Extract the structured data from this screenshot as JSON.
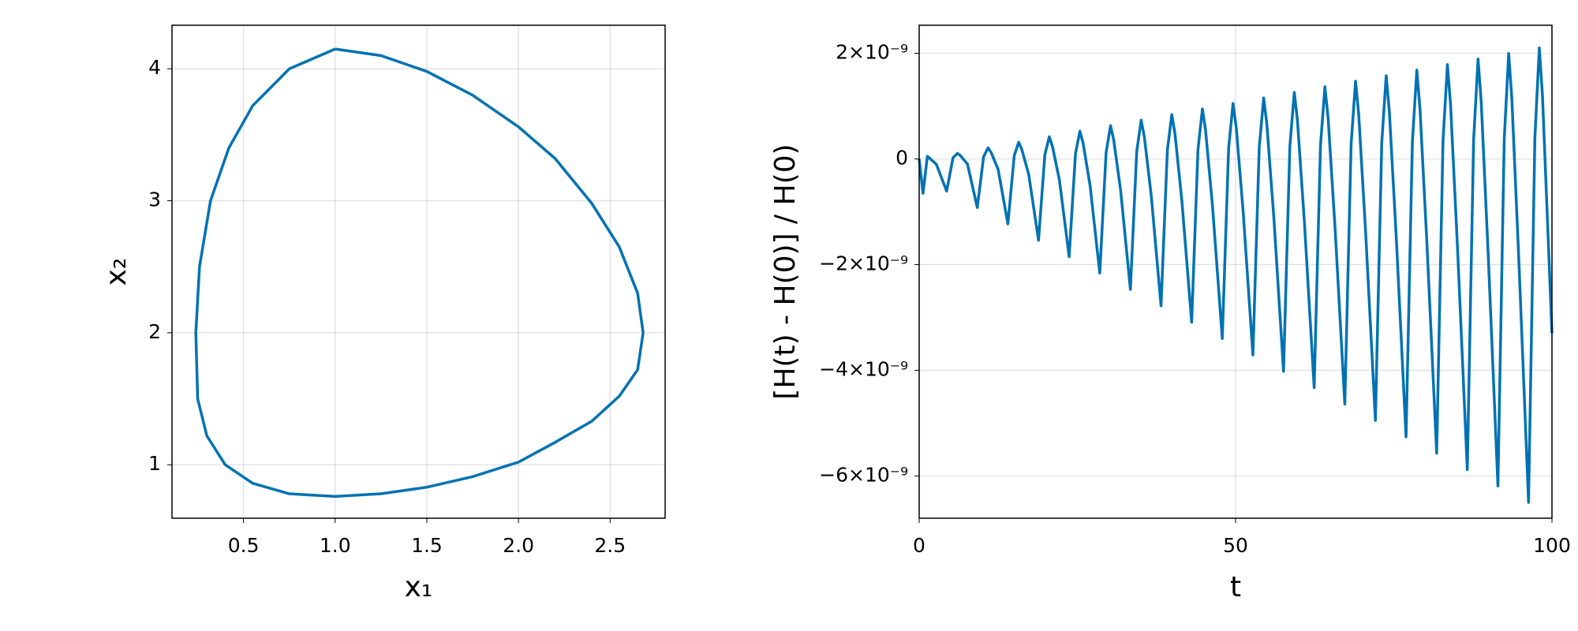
{
  "chart_data": [
    {
      "type": "line",
      "xlabel": "x₁",
      "ylabel": "x₂",
      "xlim": [
        0.11,
        2.8
      ],
      "ylim": [
        0.595,
        4.33
      ],
      "xticks": [
        0.5,
        {
          "value": 1,
          "label": "1.0"
        },
        1.5,
        {
          "value": 2,
          "label": "2.0"
        },
        2.5
      ],
      "yticks": [
        1,
        2,
        3,
        4
      ],
      "grid": true,
      "x": [
        1.0,
        1.25,
        1.5,
        1.75,
        2.0,
        2.2,
        2.4,
        2.55,
        2.65,
        2.68,
        2.65,
        2.55,
        2.4,
        2.2,
        2.0,
        1.75,
        1.5,
        1.25,
        1.0,
        0.75,
        0.55,
        0.4,
        0.3,
        0.25,
        0.24,
        0.26,
        0.32,
        0.42,
        0.55,
        0.75,
        1.0
      ],
      "series": [
        {
          "color": "#0072b2",
          "values": [
            4.15,
            4.1,
            3.98,
            3.8,
            3.56,
            3.32,
            2.98,
            2.65,
            2.3,
            2.0,
            1.72,
            1.52,
            1.33,
            1.17,
            1.02,
            0.91,
            0.83,
            0.78,
            0.76,
            0.78,
            0.86,
            1.0,
            1.22,
            1.5,
            2.0,
            2.5,
            3.0,
            3.4,
            3.72,
            4.0,
            4.15
          ]
        }
      ]
    },
    {
      "type": "line",
      "xlabel": "t",
      "ylabel": "[H(t) - H(0)] / H(0)",
      "xlim": [
        0,
        100
      ],
      "ylim": [
        -6.8e-09,
        2.53e-09
      ],
      "xticks": [
        0,
        50,
        100
      ],
      "yticks": [
        {
          "value": -6e-09,
          "label": "−6×10⁻⁹"
        },
        {
          "value": -4e-09,
          "label": "−4×10⁻⁹"
        },
        {
          "value": -2e-09,
          "label": "−2×10⁻⁹"
        },
        0,
        {
          "value": 2e-09,
          "label": "2×10⁻⁹"
        }
      ],
      "grid": true,
      "x": [
        0,
        0.6,
        1.3,
        2.7,
        4.34,
        5.34,
        6.04,
        6.54,
        7.64,
        9.18,
        10.18,
        10.88,
        11.38,
        12.48,
        14.02,
        15.02,
        15.72,
        16.22,
        17.32,
        18.86,
        19.86,
        20.56,
        21.06,
        22.16,
        23.7,
        24.7,
        25.4,
        25.9,
        27.0,
        28.54,
        29.54,
        30.24,
        30.74,
        31.84,
        33.38,
        34.38,
        35.08,
        35.58,
        36.68,
        38.22,
        39.22,
        39.92,
        40.42,
        41.52,
        43.06,
        44.06,
        44.76,
        45.26,
        46.36,
        47.9,
        48.9,
        49.6,
        50.1,
        51.2,
        52.74,
        53.74,
        54.44,
        54.94,
        56.04,
        57.58,
        58.58,
        59.28,
        59.78,
        60.88,
        62.42,
        63.42,
        64.12,
        64.62,
        65.72,
        67.26,
        68.26,
        68.96,
        69.46,
        70.56,
        72.1,
        73.1,
        73.8,
        74.3,
        75.4,
        76.94,
        77.94,
        78.64,
        79.14,
        80.24,
        81.78,
        82.78,
        83.48,
        83.98,
        85.08,
        86.62,
        87.62,
        88.32,
        88.82,
        89.92,
        91.46,
        92.46,
        93.16,
        93.66,
        94.76,
        96.3,
        97.3,
        98.0,
        98.5,
        100
      ],
      "series": [
        {
          "color": "#0072b2",
          "values": [
            0,
            -6.5e-10,
            5e-11,
            -1e-10,
            -6.1e-10,
            2e-11,
            1.05e-10,
            6e-11,
            -1e-10,
            -9.2e-10,
            4e-11,
            2.1e-10,
            1.2e-10,
            -2e-10,
            -1.23e-09,
            6e-11,
            3.15e-10,
            1.8e-10,
            -3e-10,
            -1.54e-09,
            8e-11,
            4.2e-10,
            2.4e-10,
            -4e-10,
            -1.85e-09,
            1e-10,
            5.25e-10,
            3e-10,
            -5e-10,
            -2.16e-09,
            1.2e-10,
            6.3e-10,
            3.6e-10,
            -6e-10,
            -2.47e-09,
            1.4e-10,
            7.35e-10,
            4.2e-10,
            -7e-10,
            -2.78e-09,
            1.6e-10,
            8.4e-10,
            4.8e-10,
            -8e-10,
            -3.09e-09,
            1.8e-10,
            9.45e-10,
            5.4e-10,
            -9e-10,
            -3.4e-09,
            2e-10,
            1.05e-09,
            6e-10,
            -1e-09,
            -3.71e-09,
            2.2e-10,
            1.155e-09,
            6.6e-10,
            -1.1e-09,
            -4.02e-09,
            2.4e-10,
            1.26e-09,
            7.2e-10,
            -1.2e-09,
            -4.33e-09,
            2.6e-10,
            1.365e-09,
            7.8e-10,
            -1.3e-09,
            -4.64e-09,
            2.8e-10,
            1.47e-09,
            8.4e-10,
            -1.4e-09,
            -4.95e-09,
            3e-10,
            1.575e-09,
            9e-10,
            -1.5e-09,
            -5.26e-09,
            3.2e-10,
            1.68e-09,
            9.6e-10,
            -1.6e-09,
            -5.57e-09,
            3.4e-10,
            1.785e-09,
            1.02e-09,
            -1.7e-09,
            -5.88e-09,
            3.6e-10,
            1.89e-09,
            1.08e-09,
            -1.8e-09,
            -6.19e-09,
            3.8e-10,
            1.995e-09,
            1.14e-09,
            -1.9e-09,
            -6.5e-09,
            4e-10,
            2.1e-09,
            1.2e-09,
            -3.3e-09
          ]
        }
      ]
    }
  ]
}
